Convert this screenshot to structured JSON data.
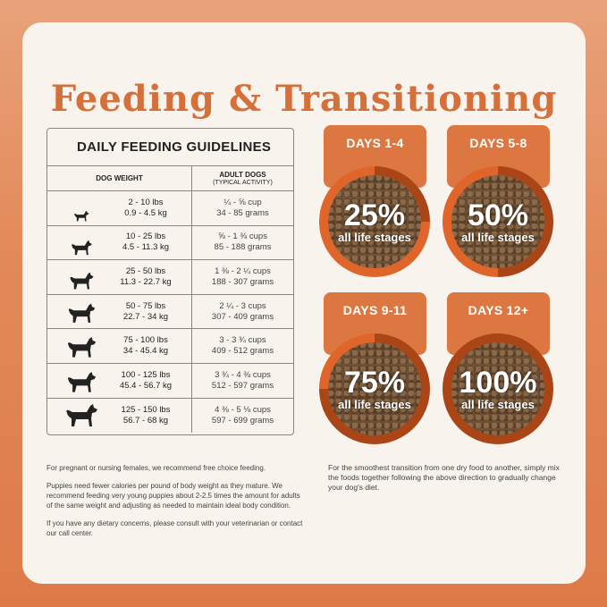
{
  "title": "Feeding & Transitioning",
  "table": {
    "title": "DAILY FEEDING GUIDELINES",
    "col1": "DOG WEIGHT",
    "col2": "ADULT DOGS",
    "col2_sub": "(TYPICAL ACTIVITY)",
    "rows": [
      {
        "lbs": "2 - 10 lbs",
        "kg": "0.9 - 4.5 kg",
        "cups": "¼ - ⅝ cup",
        "grams": "34 - 85 grams",
        "icon": "tiny-dog-icon"
      },
      {
        "lbs": "10 - 25 lbs",
        "kg": "4.5 - 11.3 kg",
        "cups": "⅝ - 1 ⅜ cups",
        "grams": "85 - 188 grams",
        "icon": "small-dog-icon"
      },
      {
        "lbs": "25 - 50 lbs",
        "kg": "11.3 - 22.7 kg",
        "cups": "1 ⅜ - 2 ¼ cups",
        "grams": "188 - 307 grams",
        "icon": "medium-dog-icon"
      },
      {
        "lbs": "50 - 75 lbs",
        "kg": "22.7 - 34 kg",
        "cups": "2 ¼ - 3 cups",
        "grams": "307 - 409 grams",
        "icon": "large-dog-icon"
      },
      {
        "lbs": "75 - 100 lbs",
        "kg": "34 - 45.4 kg",
        "cups": "3 - 3 ¾ cups",
        "grams": "409 - 512 grams",
        "icon": "great-dane-icon"
      },
      {
        "lbs": "100 - 125 lbs",
        "kg": "45.4 - 56.7 kg",
        "cups": "3 ¾ - 4 ⅜ cups",
        "grams": "512 - 597 grams",
        "icon": "labrador-icon"
      },
      {
        "lbs": "125 - 150 lbs",
        "kg": "56.7 - 68 kg",
        "cups": "4 ⅜ - 5 ⅛ cups",
        "grams": "597 - 699 grams",
        "icon": "giant-dog-icon"
      }
    ]
  },
  "stages": [
    {
      "days": "DAYS 1-4",
      "pct": "25%",
      "label": "all life stages",
      "fraction": 0.25
    },
    {
      "days": "DAYS 5-8",
      "pct": "50%",
      "label": "all life stages",
      "fraction": 0.5
    },
    {
      "days": "DAYS 9-11",
      "pct": "75%",
      "label": "all life stages",
      "fraction": 0.75
    },
    {
      "days": "DAYS 12+",
      "pct": "100%",
      "label": "all life stages",
      "fraction": 1.0
    }
  ],
  "notes_left": [
    "For pregnant or nursing females, we recommend free choice feeding.",
    "Puppies need fewer calories per pound of body weight as they mature. We recommend feeding very young puppies about 2-2.5 times the amount for adults of the same weight and adjusting as needed to maintain ideal body condition.",
    "If you have any dietary concerns, please consult with your veterinarian or contact our call center."
  ],
  "notes_right": "For the smoothest transition from one dry food to another, simply mix the foods together following the above direction to gradually change your dog's diet.",
  "colors": {
    "accent": "#d6703a",
    "tag": "#dd7741",
    "ring": "#e0652a",
    "ring_dark": "#a94516",
    "card": "#f8f3ec"
  }
}
